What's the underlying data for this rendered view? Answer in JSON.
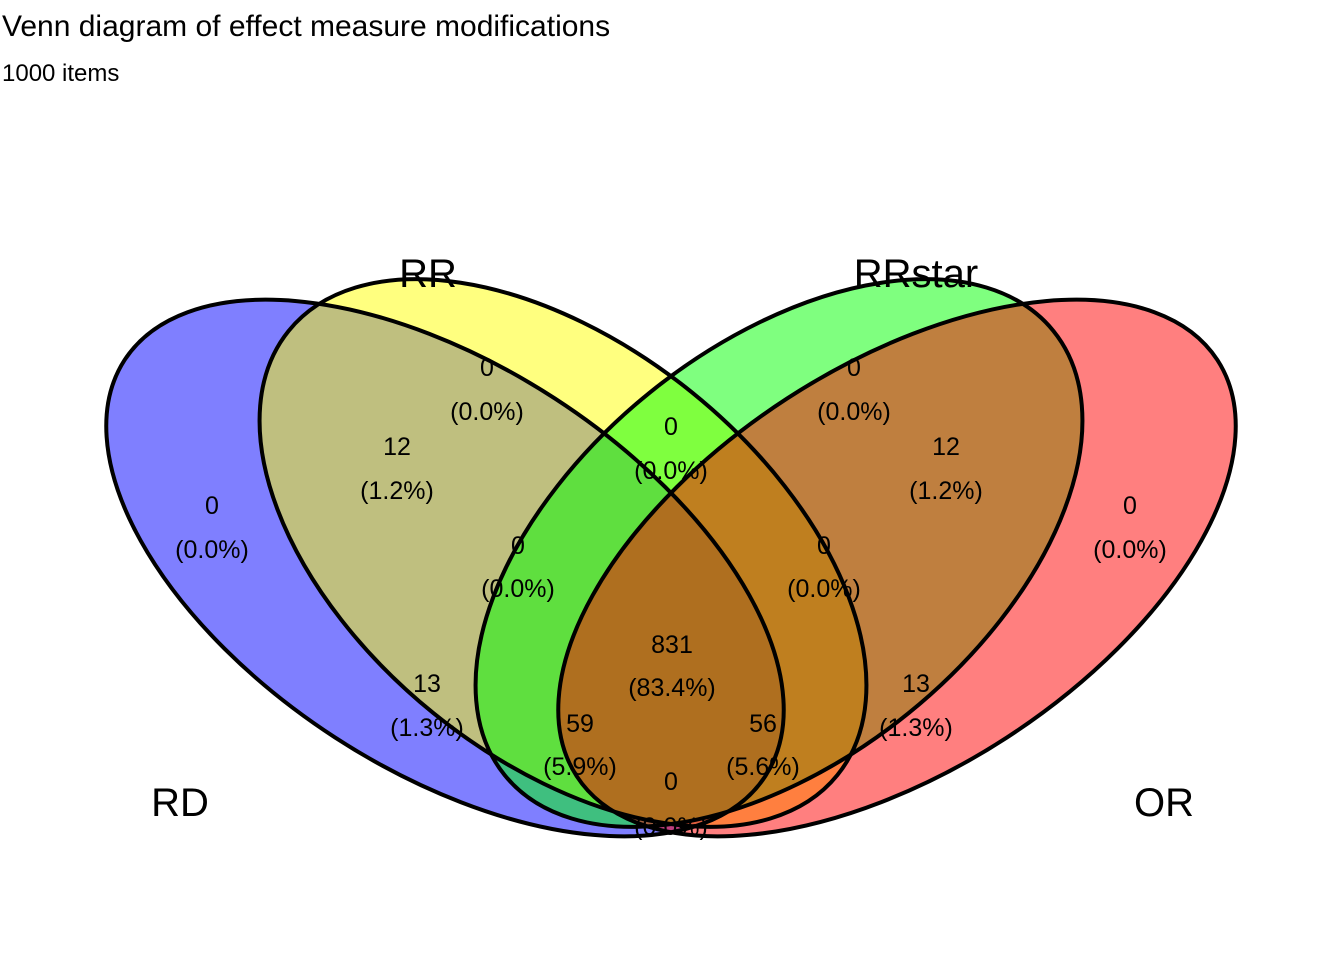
{
  "title": "Venn diagram of effect measure modifications",
  "subtitle": "1000 items",
  "sets": [
    {
      "name": "RD",
      "color": "#0000ff"
    },
    {
      "name": "RR",
      "color": "#ffff00"
    },
    {
      "name": "RRstar",
      "color": "#00ff00"
    },
    {
      "name": "OR",
      "color": "#ff0000"
    }
  ],
  "regions": [
    {
      "id": "rd-only",
      "count": "0",
      "percent": "(0.0%)"
    },
    {
      "id": "rr-only",
      "count": "0",
      "percent": "(0.0%)"
    },
    {
      "id": "rrstar-only",
      "count": "0",
      "percent": "(0.0%)"
    },
    {
      "id": "or-only",
      "count": "0",
      "percent": "(0.0%)"
    },
    {
      "id": "rd-rr",
      "count": "12",
      "percent": "(1.2%)"
    },
    {
      "id": "rr-rrstar",
      "count": "0",
      "percent": "(0.0%)"
    },
    {
      "id": "rrstar-or",
      "count": "12",
      "percent": "(1.2%)"
    },
    {
      "id": "rd-rr-rrstar",
      "count": "0",
      "percent": "(0.0%)"
    },
    {
      "id": "rr-rrstar-or",
      "count": "0",
      "percent": "(0.0%)"
    },
    {
      "id": "rd-rrstar",
      "count": "13",
      "percent": "(1.3%)"
    },
    {
      "id": "all",
      "count": "831",
      "percent": "(83.4%)"
    },
    {
      "id": "rr-or",
      "count": "13",
      "percent": "(1.3%)"
    },
    {
      "id": "rd-rrstar-or",
      "count": "59",
      "percent": "(5.9%)"
    },
    {
      "id": "rd-rr-or",
      "count": "56",
      "percent": "(5.6%)"
    },
    {
      "id": "rd-or",
      "count": "0",
      "percent": "(0.0%)"
    }
  ]
}
